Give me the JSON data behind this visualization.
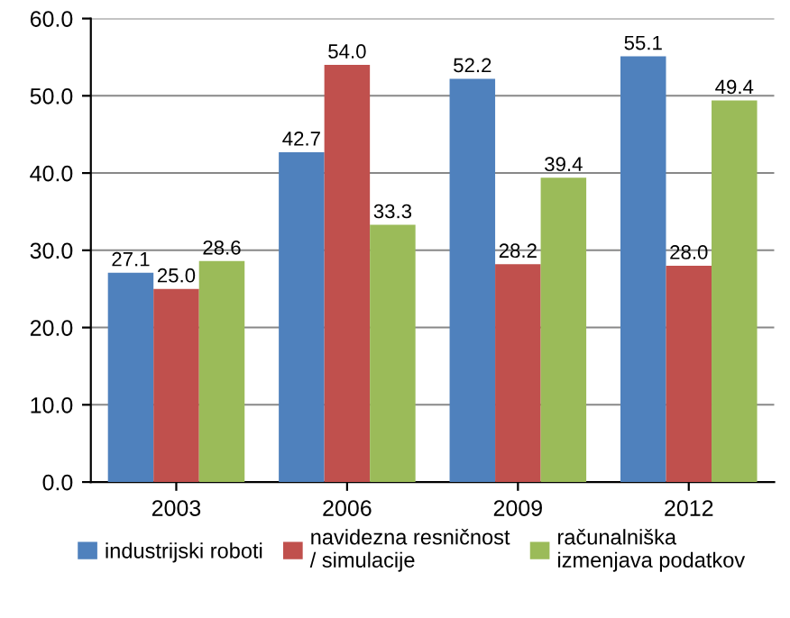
{
  "chart_data": {
    "type": "bar",
    "categories": [
      "2003",
      "2006",
      "2009",
      "2012"
    ],
    "series": [
      {
        "name": "industrijski roboti",
        "color": "#4f81bd",
        "values": [
          27.1,
          42.7,
          52.2,
          55.1
        ],
        "value_labels": [
          "27.1",
          "42.7",
          "52.2",
          "55.1"
        ]
      },
      {
        "name": "navidezna resničnost\n/ simulacije",
        "color": "#c0504d",
        "values": [
          25.0,
          54.0,
          28.2,
          28.0
        ],
        "value_labels": [
          "25.0",
          "54.0",
          "28.2",
          "28.0"
        ]
      },
      {
        "name": "računalniška\nizmenjava podatkov",
        "color": "#9bbb59",
        "values": [
          28.6,
          33.3,
          39.4,
          49.4
        ],
        "value_labels": [
          "28.6",
          "33.3",
          "39.4",
          "49.4"
        ]
      }
    ],
    "ylim": [
      0,
      60
    ],
    "yticks": [
      {
        "value": 0,
        "label": "0.0"
      },
      {
        "value": 10,
        "label": "10.0"
      },
      {
        "value": 20,
        "label": "20.0"
      },
      {
        "value": 30,
        "label": "30.0"
      },
      {
        "value": 40,
        "label": "40.0"
      },
      {
        "value": 50,
        "label": "50.0"
      },
      {
        "value": 60,
        "label": "60.0"
      }
    ],
    "grid": "y",
    "legend": "bottom"
  }
}
